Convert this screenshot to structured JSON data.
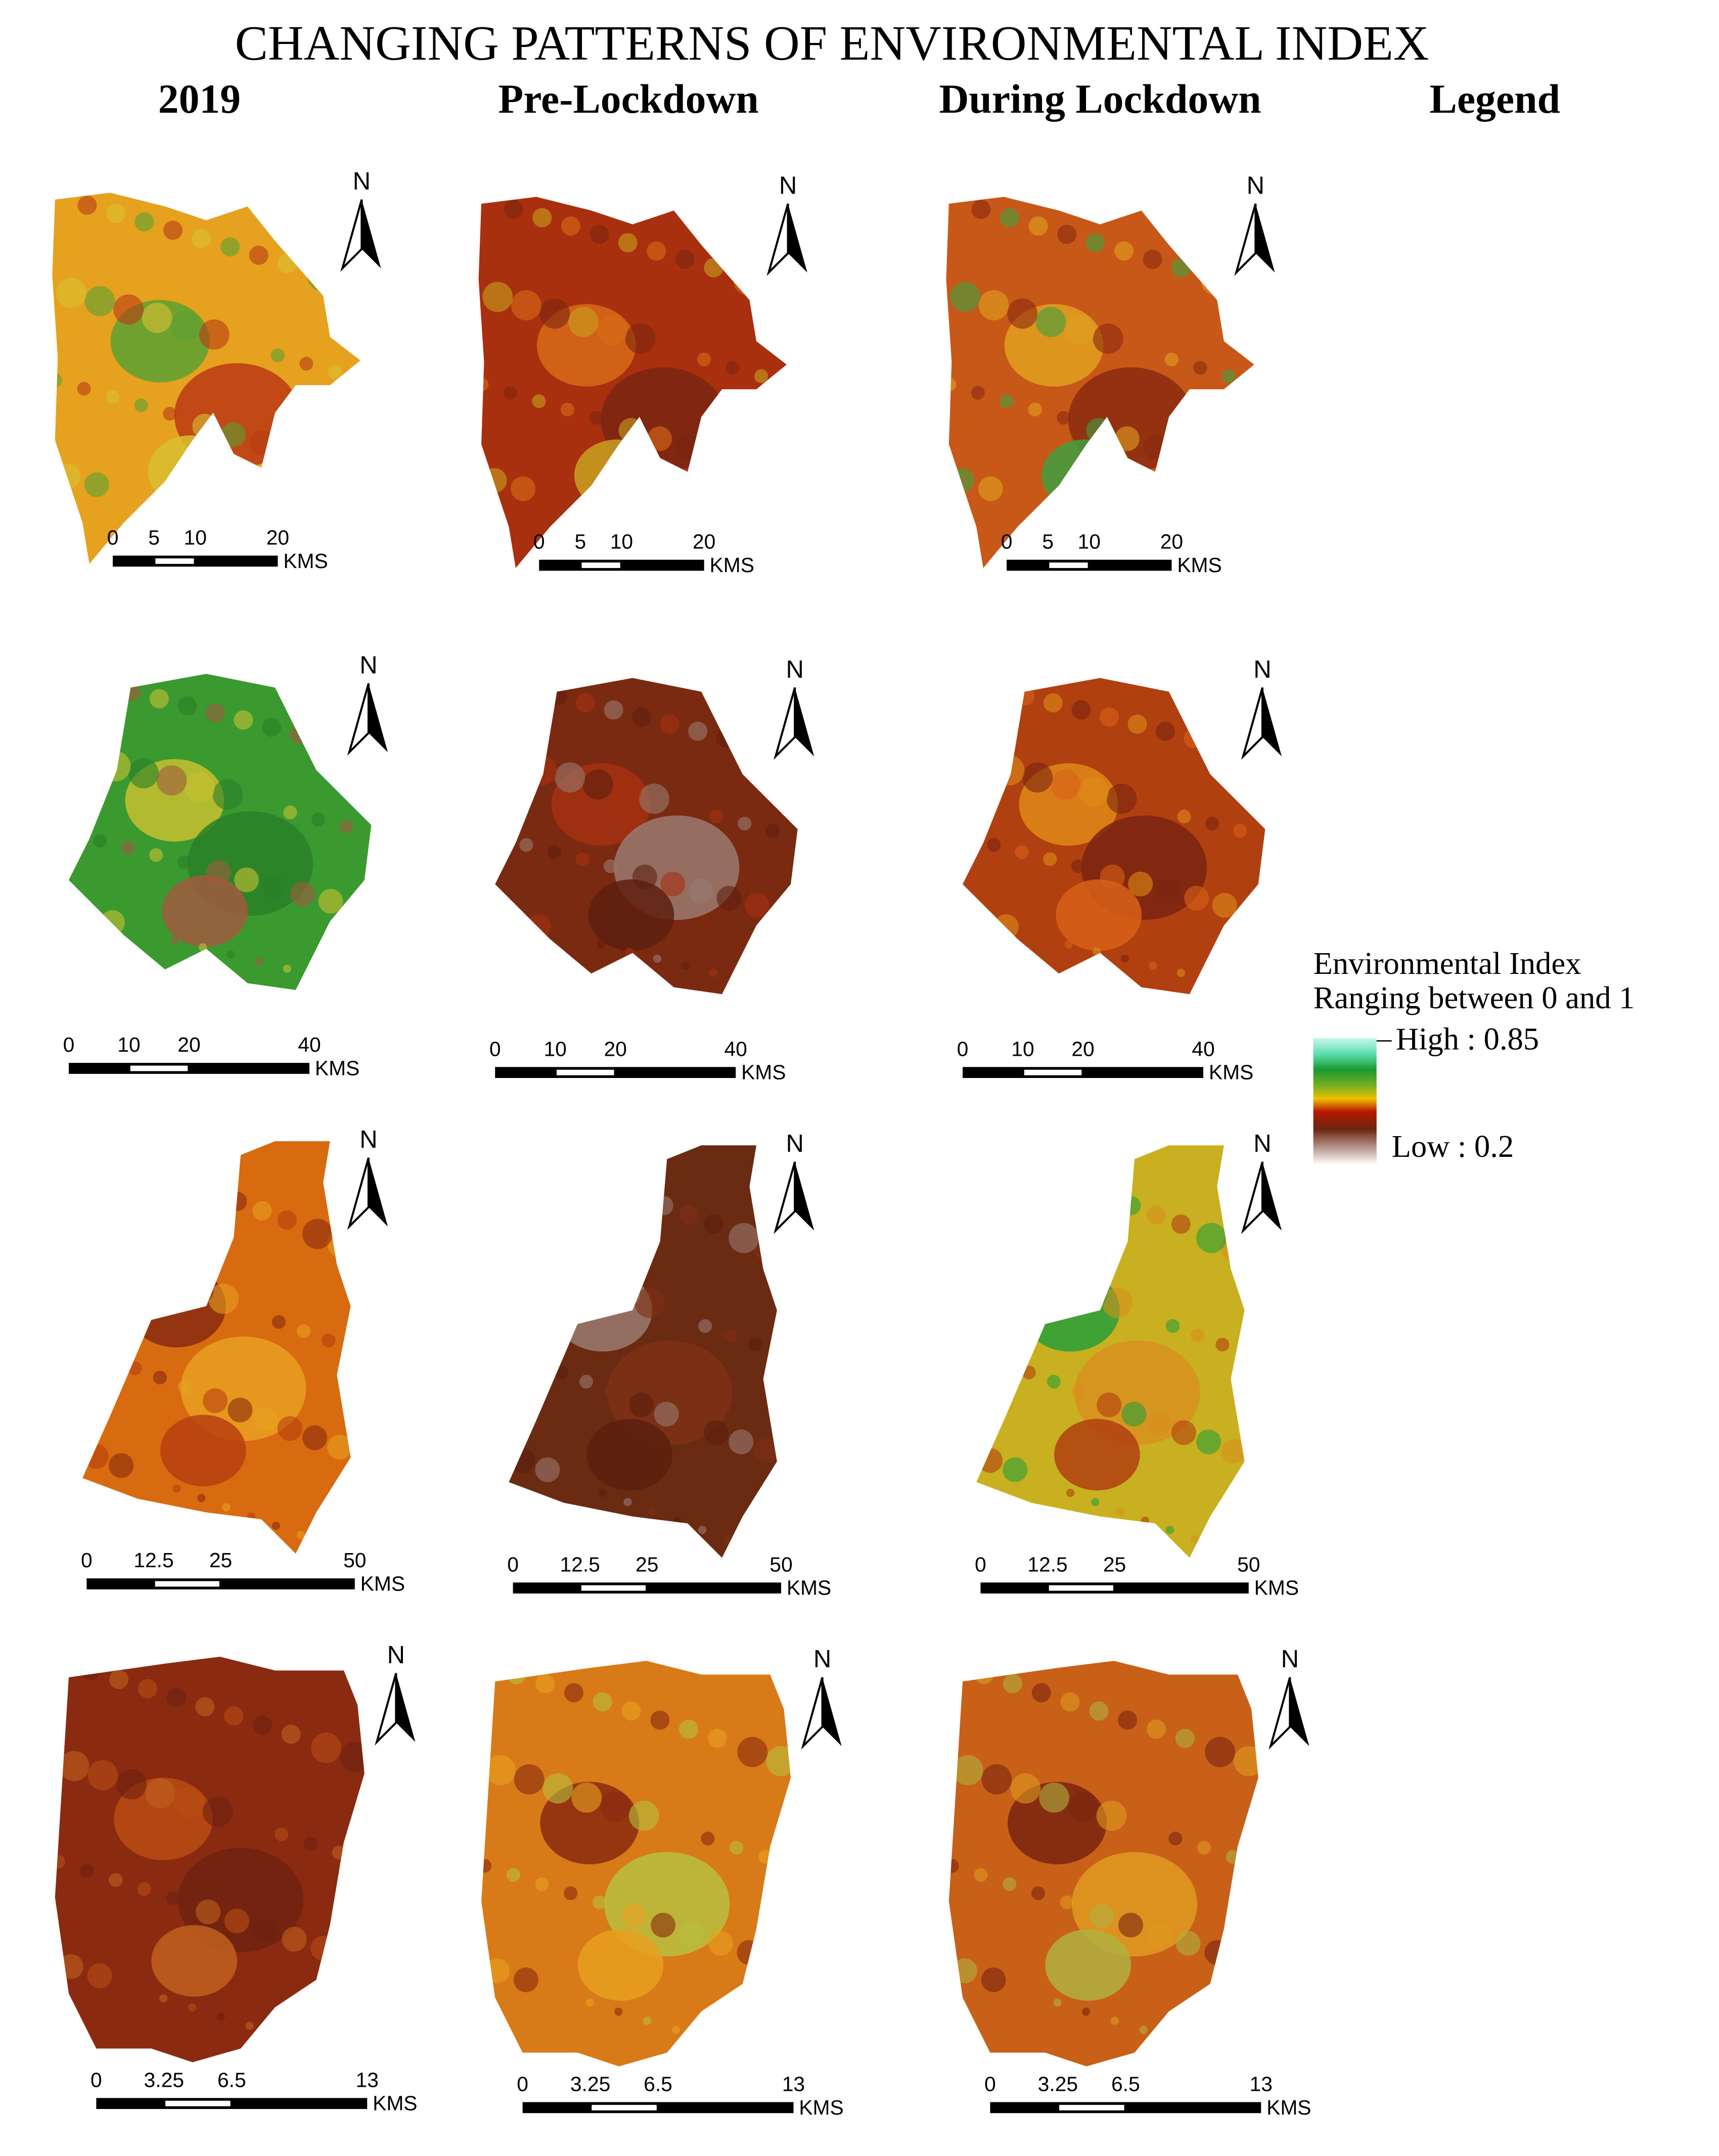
{
  "title": "CHANGING PATTERNS OF ENVIRONMENTAL INDEX",
  "columns": [
    "2019",
    "Pre-Lockdown",
    "During Lockdown",
    "Legend"
  ],
  "legend": {
    "title": "Environmental Index",
    "subtitle": "Ranging between 0 and 1",
    "high": "High : 0.85",
    "low": "Low : 0.2"
  },
  "rows": [
    {
      "scale_labels": [
        "0",
        "5",
        "10",
        "20"
      ],
      "unit": "KMS",
      "north": "N"
    },
    {
      "scale_labels": [
        "0",
        "10",
        "20",
        "40"
      ],
      "unit": "KMS",
      "north": "N"
    },
    {
      "scale_labels": [
        "0",
        "12.5",
        "25",
        "50"
      ],
      "unit": "KMS",
      "north": "N"
    },
    {
      "scale_labels": [
        "0",
        "3.25",
        "6.5",
        "13"
      ],
      "unit": "KMS",
      "north": "N"
    }
  ]
}
